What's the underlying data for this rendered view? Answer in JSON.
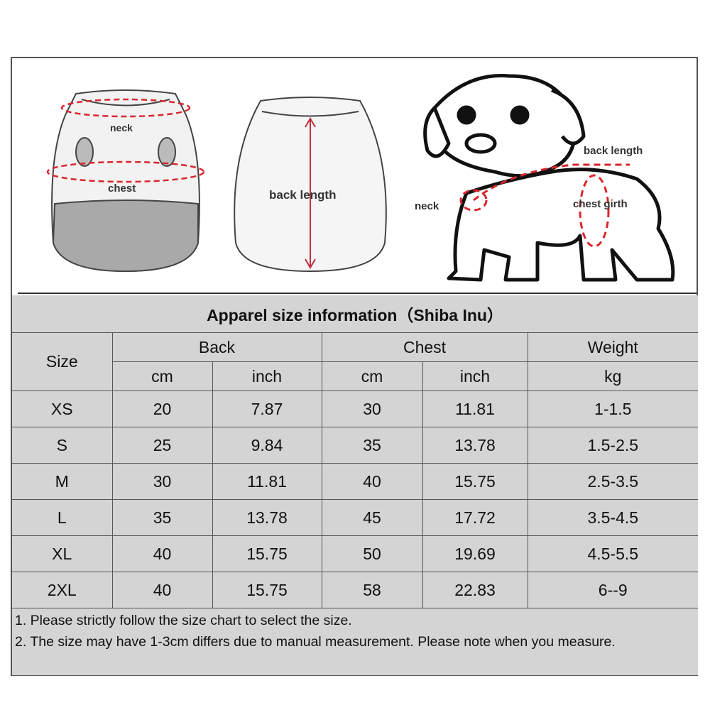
{
  "illustrations": {
    "front_labels": {
      "neck": "neck",
      "chest": "chest"
    },
    "back_label": "back length",
    "dog_labels": {
      "back_length": "back length",
      "neck": "neck",
      "chest_girth": "chest girth"
    },
    "accent_color": "#d9262c"
  },
  "table": {
    "title": "Apparel  size  information（Shiba Inu）",
    "headers": {
      "size": "Size",
      "back": "Back",
      "chest": "Chest",
      "weight": "Weight"
    },
    "units": [
      "cm",
      "inch",
      "cm",
      "inch",
      "kg"
    ],
    "rows": [
      [
        "XS",
        "20",
        "7.87",
        "30",
        "11.81",
        "1-1.5"
      ],
      [
        "S",
        "25",
        "9.84",
        "35",
        "13.78",
        "1.5-2.5"
      ],
      [
        "M",
        "30",
        "11.81",
        "40",
        "15.75",
        "2.5-3.5"
      ],
      [
        "L",
        "35",
        "13.78",
        "45",
        "17.72",
        "3.5-4.5"
      ],
      [
        "XL",
        "40",
        "15.75",
        "50",
        "19.69",
        "4.5-5.5"
      ],
      [
        "2XL",
        "40",
        "15.75",
        "58",
        "22.83",
        "6--9"
      ]
    ],
    "notes": [
      "1. Please strictly follow the size chart  to select the size.",
      "2. The size may have 1-3cm differs due to manual measurement. Please note when you measure."
    ],
    "background_color": "#d4d4d4"
  }
}
